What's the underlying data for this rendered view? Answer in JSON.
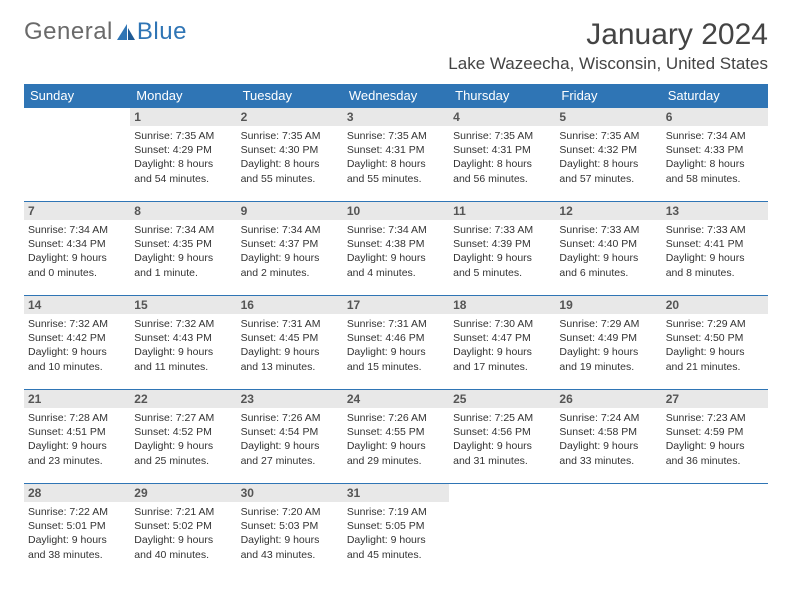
{
  "brand": {
    "part1": "General",
    "part2": "Blue"
  },
  "title": "January 2024",
  "location": "Lake Wazeecha, Wisconsin, United States",
  "colors": {
    "header_bg": "#2f75b5",
    "header_fg": "#ffffff",
    "daynum_bg": "#e8e8e8",
    "border": "#2f75b5",
    "brand_gray": "#6a6a6a",
    "brand_blue": "#2f75b5"
  },
  "weekdays": [
    "Sunday",
    "Monday",
    "Tuesday",
    "Wednesday",
    "Thursday",
    "Friday",
    "Saturday"
  ],
  "weeks": [
    [
      {
        "n": "",
        "sr": "",
        "ss": "",
        "dl1": "",
        "dl2": ""
      },
      {
        "n": "1",
        "sr": "Sunrise: 7:35 AM",
        "ss": "Sunset: 4:29 PM",
        "dl1": "Daylight: 8 hours",
        "dl2": "and 54 minutes."
      },
      {
        "n": "2",
        "sr": "Sunrise: 7:35 AM",
        "ss": "Sunset: 4:30 PM",
        "dl1": "Daylight: 8 hours",
        "dl2": "and 55 minutes."
      },
      {
        "n": "3",
        "sr": "Sunrise: 7:35 AM",
        "ss": "Sunset: 4:31 PM",
        "dl1": "Daylight: 8 hours",
        "dl2": "and 55 minutes."
      },
      {
        "n": "4",
        "sr": "Sunrise: 7:35 AM",
        "ss": "Sunset: 4:31 PM",
        "dl1": "Daylight: 8 hours",
        "dl2": "and 56 minutes."
      },
      {
        "n": "5",
        "sr": "Sunrise: 7:35 AM",
        "ss": "Sunset: 4:32 PM",
        "dl1": "Daylight: 8 hours",
        "dl2": "and 57 minutes."
      },
      {
        "n": "6",
        "sr": "Sunrise: 7:34 AM",
        "ss": "Sunset: 4:33 PM",
        "dl1": "Daylight: 8 hours",
        "dl2": "and 58 minutes."
      }
    ],
    [
      {
        "n": "7",
        "sr": "Sunrise: 7:34 AM",
        "ss": "Sunset: 4:34 PM",
        "dl1": "Daylight: 9 hours",
        "dl2": "and 0 minutes."
      },
      {
        "n": "8",
        "sr": "Sunrise: 7:34 AM",
        "ss": "Sunset: 4:35 PM",
        "dl1": "Daylight: 9 hours",
        "dl2": "and 1 minute."
      },
      {
        "n": "9",
        "sr": "Sunrise: 7:34 AM",
        "ss": "Sunset: 4:37 PM",
        "dl1": "Daylight: 9 hours",
        "dl2": "and 2 minutes."
      },
      {
        "n": "10",
        "sr": "Sunrise: 7:34 AM",
        "ss": "Sunset: 4:38 PM",
        "dl1": "Daylight: 9 hours",
        "dl2": "and 4 minutes."
      },
      {
        "n": "11",
        "sr": "Sunrise: 7:33 AM",
        "ss": "Sunset: 4:39 PM",
        "dl1": "Daylight: 9 hours",
        "dl2": "and 5 minutes."
      },
      {
        "n": "12",
        "sr": "Sunrise: 7:33 AM",
        "ss": "Sunset: 4:40 PM",
        "dl1": "Daylight: 9 hours",
        "dl2": "and 6 minutes."
      },
      {
        "n": "13",
        "sr": "Sunrise: 7:33 AM",
        "ss": "Sunset: 4:41 PM",
        "dl1": "Daylight: 9 hours",
        "dl2": "and 8 minutes."
      }
    ],
    [
      {
        "n": "14",
        "sr": "Sunrise: 7:32 AM",
        "ss": "Sunset: 4:42 PM",
        "dl1": "Daylight: 9 hours",
        "dl2": "and 10 minutes."
      },
      {
        "n": "15",
        "sr": "Sunrise: 7:32 AM",
        "ss": "Sunset: 4:43 PM",
        "dl1": "Daylight: 9 hours",
        "dl2": "and 11 minutes."
      },
      {
        "n": "16",
        "sr": "Sunrise: 7:31 AM",
        "ss": "Sunset: 4:45 PM",
        "dl1": "Daylight: 9 hours",
        "dl2": "and 13 minutes."
      },
      {
        "n": "17",
        "sr": "Sunrise: 7:31 AM",
        "ss": "Sunset: 4:46 PM",
        "dl1": "Daylight: 9 hours",
        "dl2": "and 15 minutes."
      },
      {
        "n": "18",
        "sr": "Sunrise: 7:30 AM",
        "ss": "Sunset: 4:47 PM",
        "dl1": "Daylight: 9 hours",
        "dl2": "and 17 minutes."
      },
      {
        "n": "19",
        "sr": "Sunrise: 7:29 AM",
        "ss": "Sunset: 4:49 PM",
        "dl1": "Daylight: 9 hours",
        "dl2": "and 19 minutes."
      },
      {
        "n": "20",
        "sr": "Sunrise: 7:29 AM",
        "ss": "Sunset: 4:50 PM",
        "dl1": "Daylight: 9 hours",
        "dl2": "and 21 minutes."
      }
    ],
    [
      {
        "n": "21",
        "sr": "Sunrise: 7:28 AM",
        "ss": "Sunset: 4:51 PM",
        "dl1": "Daylight: 9 hours",
        "dl2": "and 23 minutes."
      },
      {
        "n": "22",
        "sr": "Sunrise: 7:27 AM",
        "ss": "Sunset: 4:52 PM",
        "dl1": "Daylight: 9 hours",
        "dl2": "and 25 minutes."
      },
      {
        "n": "23",
        "sr": "Sunrise: 7:26 AM",
        "ss": "Sunset: 4:54 PM",
        "dl1": "Daylight: 9 hours",
        "dl2": "and 27 minutes."
      },
      {
        "n": "24",
        "sr": "Sunrise: 7:26 AM",
        "ss": "Sunset: 4:55 PM",
        "dl1": "Daylight: 9 hours",
        "dl2": "and 29 minutes."
      },
      {
        "n": "25",
        "sr": "Sunrise: 7:25 AM",
        "ss": "Sunset: 4:56 PM",
        "dl1": "Daylight: 9 hours",
        "dl2": "and 31 minutes."
      },
      {
        "n": "26",
        "sr": "Sunrise: 7:24 AM",
        "ss": "Sunset: 4:58 PM",
        "dl1": "Daylight: 9 hours",
        "dl2": "and 33 minutes."
      },
      {
        "n": "27",
        "sr": "Sunrise: 7:23 AM",
        "ss": "Sunset: 4:59 PM",
        "dl1": "Daylight: 9 hours",
        "dl2": "and 36 minutes."
      }
    ],
    [
      {
        "n": "28",
        "sr": "Sunrise: 7:22 AM",
        "ss": "Sunset: 5:01 PM",
        "dl1": "Daylight: 9 hours",
        "dl2": "and 38 minutes."
      },
      {
        "n": "29",
        "sr": "Sunrise: 7:21 AM",
        "ss": "Sunset: 5:02 PM",
        "dl1": "Daylight: 9 hours",
        "dl2": "and 40 minutes."
      },
      {
        "n": "30",
        "sr": "Sunrise: 7:20 AM",
        "ss": "Sunset: 5:03 PM",
        "dl1": "Daylight: 9 hours",
        "dl2": "and 43 minutes."
      },
      {
        "n": "31",
        "sr": "Sunrise: 7:19 AM",
        "ss": "Sunset: 5:05 PM",
        "dl1": "Daylight: 9 hours",
        "dl2": "and 45 minutes."
      },
      {
        "n": "",
        "sr": "",
        "ss": "",
        "dl1": "",
        "dl2": ""
      },
      {
        "n": "",
        "sr": "",
        "ss": "",
        "dl1": "",
        "dl2": ""
      },
      {
        "n": "",
        "sr": "",
        "ss": "",
        "dl1": "",
        "dl2": ""
      }
    ]
  ]
}
